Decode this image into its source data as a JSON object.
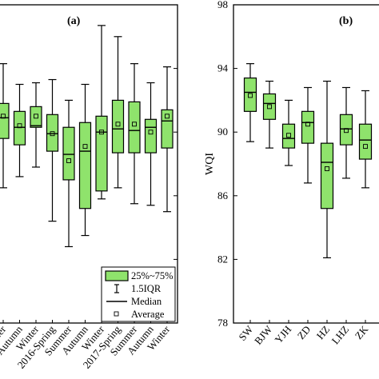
{
  "chart_data": [
    {
      "type": "box",
      "panel_label": "(a)",
      "categories": [
        "...er",
        "Autumn",
        "Winter",
        "2016-Spring",
        "Summer",
        "Autumn",
        "Winter",
        "2017-Spring",
        "Summer",
        "Autumn",
        "Winter"
      ],
      "ylim": [
        78,
        98
      ],
      "ylabel": "",
      "boxes": [
        {
          "q1": 89.6,
          "q3": 91.8,
          "median": 90.9,
          "mean": 91.0,
          "whisker_low": 86.5,
          "whisker_high": 94.3
        },
        {
          "q1": 89.2,
          "q3": 91.3,
          "median": 90.3,
          "mean": 90.4,
          "whisker_low": 87.2,
          "whisker_high": 93.0
        },
        {
          "q1": 90.3,
          "q3": 91.6,
          "median": 90.4,
          "mean": 91.0,
          "whisker_low": 87.8,
          "whisker_high": 93.1
        },
        {
          "q1": 88.8,
          "q3": 91.1,
          "median": 89.9,
          "mean": 89.9,
          "whisker_low": 84.4,
          "whisker_high": 93.3
        },
        {
          "q1": 87.0,
          "q3": 90.3,
          "median": 88.6,
          "mean": 88.2,
          "whisker_low": 82.8,
          "whisker_high": 92.0
        },
        {
          "q1": 85.2,
          "q3": 90.6,
          "median": 88.8,
          "mean": 89.1,
          "whisker_low": 83.5,
          "whisker_high": 93.0
        },
        {
          "q1": 86.3,
          "q3": 91.0,
          "median": 90.0,
          "mean": 90.0,
          "whisker_low": 85.8,
          "whisker_high": 96.7
        },
        {
          "q1": 88.7,
          "q3": 92.0,
          "median": 90.2,
          "mean": 90.5,
          "whisker_low": 86.5,
          "whisker_high": 96.0
        },
        {
          "q1": 88.7,
          "q3": 91.9,
          "median": 90.1,
          "mean": 90.5,
          "whisker_low": 85.5,
          "whisker_high": 94.3
        },
        {
          "q1": 88.7,
          "q3": 90.8,
          "median": 90.3,
          "mean": 90.0,
          "whisker_low": 85.4,
          "whisker_high": 93.1
        },
        {
          "q1": 89.0,
          "q3": 91.4,
          "median": 90.7,
          "mean": 91.0,
          "whisker_low": 85.0,
          "whisker_high": 94.1
        }
      ],
      "legend": {
        "items": [
          "25%~75%",
          "1.5IQR",
          "Median",
          "Average"
        ],
        "position": "bottom-right"
      }
    },
    {
      "type": "box",
      "panel_label": "(b)",
      "categories": [
        "SW",
        "BJW",
        "YJH",
        "ZD",
        "HZ",
        "LHZ",
        "ZK",
        "..."
      ],
      "ylabel": "WQI",
      "ylim": [
        78,
        98
      ],
      "yticks": [
        "78",
        "82",
        "86",
        "90",
        "94",
        "98"
      ],
      "boxes": [
        {
          "q1": 91.3,
          "q3": 93.4,
          "median": 92.5,
          "mean": 92.3,
          "whisker_low": 89.4,
          "whisker_high": 94.3
        },
        {
          "q1": 90.8,
          "q3": 92.4,
          "median": 91.8,
          "mean": 91.6,
          "whisker_low": 89.0,
          "whisker_high": 93.2
        },
        {
          "q1": 89.0,
          "q3": 90.5,
          "median": 89.6,
          "mean": 89.8,
          "whisker_low": 87.9,
          "whisker_high": 92.0
        },
        {
          "q1": 89.3,
          "q3": 91.3,
          "median": 90.6,
          "mean": 90.5,
          "whisker_low": 86.8,
          "whisker_high": 92.8
        },
        {
          "q1": 85.2,
          "q3": 89.3,
          "median": 88.1,
          "mean": 87.7,
          "whisker_low": 82.1,
          "whisker_high": 93.2
        },
        {
          "q1": 89.2,
          "q3": 91.1,
          "median": 90.2,
          "mean": 90.1,
          "whisker_low": 87.1,
          "whisker_high": 92.8
        },
        {
          "q1": 88.3,
          "q3": 90.5,
          "median": 89.5,
          "mean": 89.1,
          "whisker_low": 86.5,
          "whisker_high": 92.6
        }
      ]
    }
  ]
}
